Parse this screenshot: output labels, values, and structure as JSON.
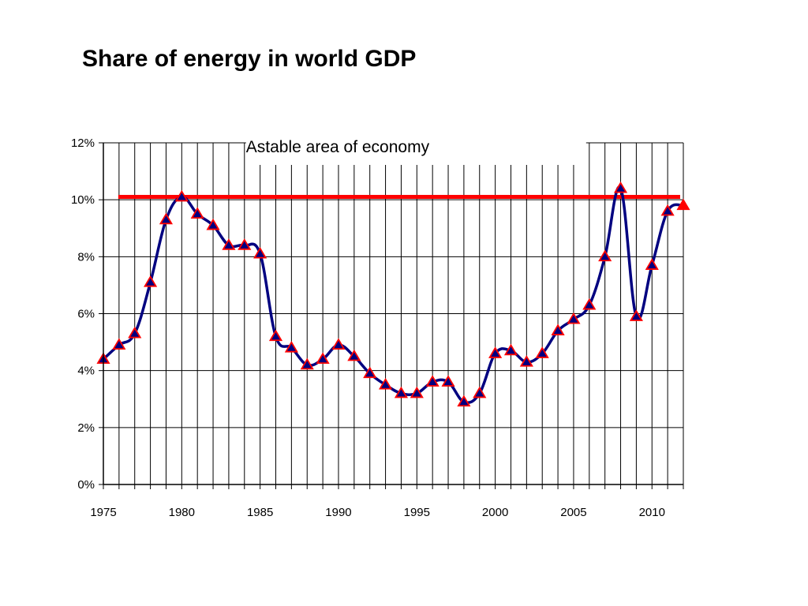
{
  "slide": {
    "title": "Share of energy in world GDP"
  },
  "chart_data": {
    "type": "line",
    "title": "Share of energy in world GDP",
    "xlabel": "",
    "ylabel": "",
    "xlim": [
      1975,
      2012
    ],
    "ylim": [
      0,
      12
    ],
    "x_ticks": [
      1975,
      1980,
      1985,
      1990,
      1995,
      2000,
      2005,
      2010
    ],
    "y_ticks": [
      0,
      2,
      4,
      6,
      8,
      10,
      12
    ],
    "y_tick_labels": [
      "0%",
      "2%",
      "4%",
      "6%",
      "8%",
      "10%",
      "12%"
    ],
    "grid": "vertical lines every year, horizontal lines every 2%",
    "series": [
      {
        "x": [
          1975,
          1976,
          1977,
          1978,
          1979,
          1980,
          1981,
          1982,
          1983,
          1984,
          1985,
          1986,
          1987,
          1988,
          1989,
          1990,
          1991,
          1992,
          1993,
          1994,
          1995,
          1996,
          1997,
          1998,
          1999,
          2000,
          2001,
          2002,
          2003,
          2004,
          2005,
          2006,
          2007,
          2008,
          2009,
          2010,
          2011,
          2012
        ],
        "values": [
          4.4,
          4.9,
          5.3,
          7.1,
          9.3,
          10.1,
          9.5,
          9.1,
          8.4,
          8.4,
          8.1,
          5.2,
          4.8,
          4.2,
          4.4,
          4.9,
          4.5,
          3.9,
          3.5,
          3.2,
          3.2,
          3.6,
          3.6,
          2.9,
          3.2,
          4.6,
          4.7,
          4.3,
          4.6,
          5.4,
          5.8,
          6.3,
          8.0,
          10.4,
          5.9,
          7.7,
          9.6,
          9.8
        ],
        "line_color": "#000080",
        "marker": "triangle",
        "marker_fill": "#000080",
        "marker_edge": "#ff0000"
      }
    ],
    "threshold": {
      "value": 10.1,
      "x_start": 1976,
      "x_end": 2012,
      "color": "#ff0000"
    },
    "annotation": {
      "text": "Astable area of economy",
      "x_start": 1984,
      "x_end": 2006
    }
  }
}
